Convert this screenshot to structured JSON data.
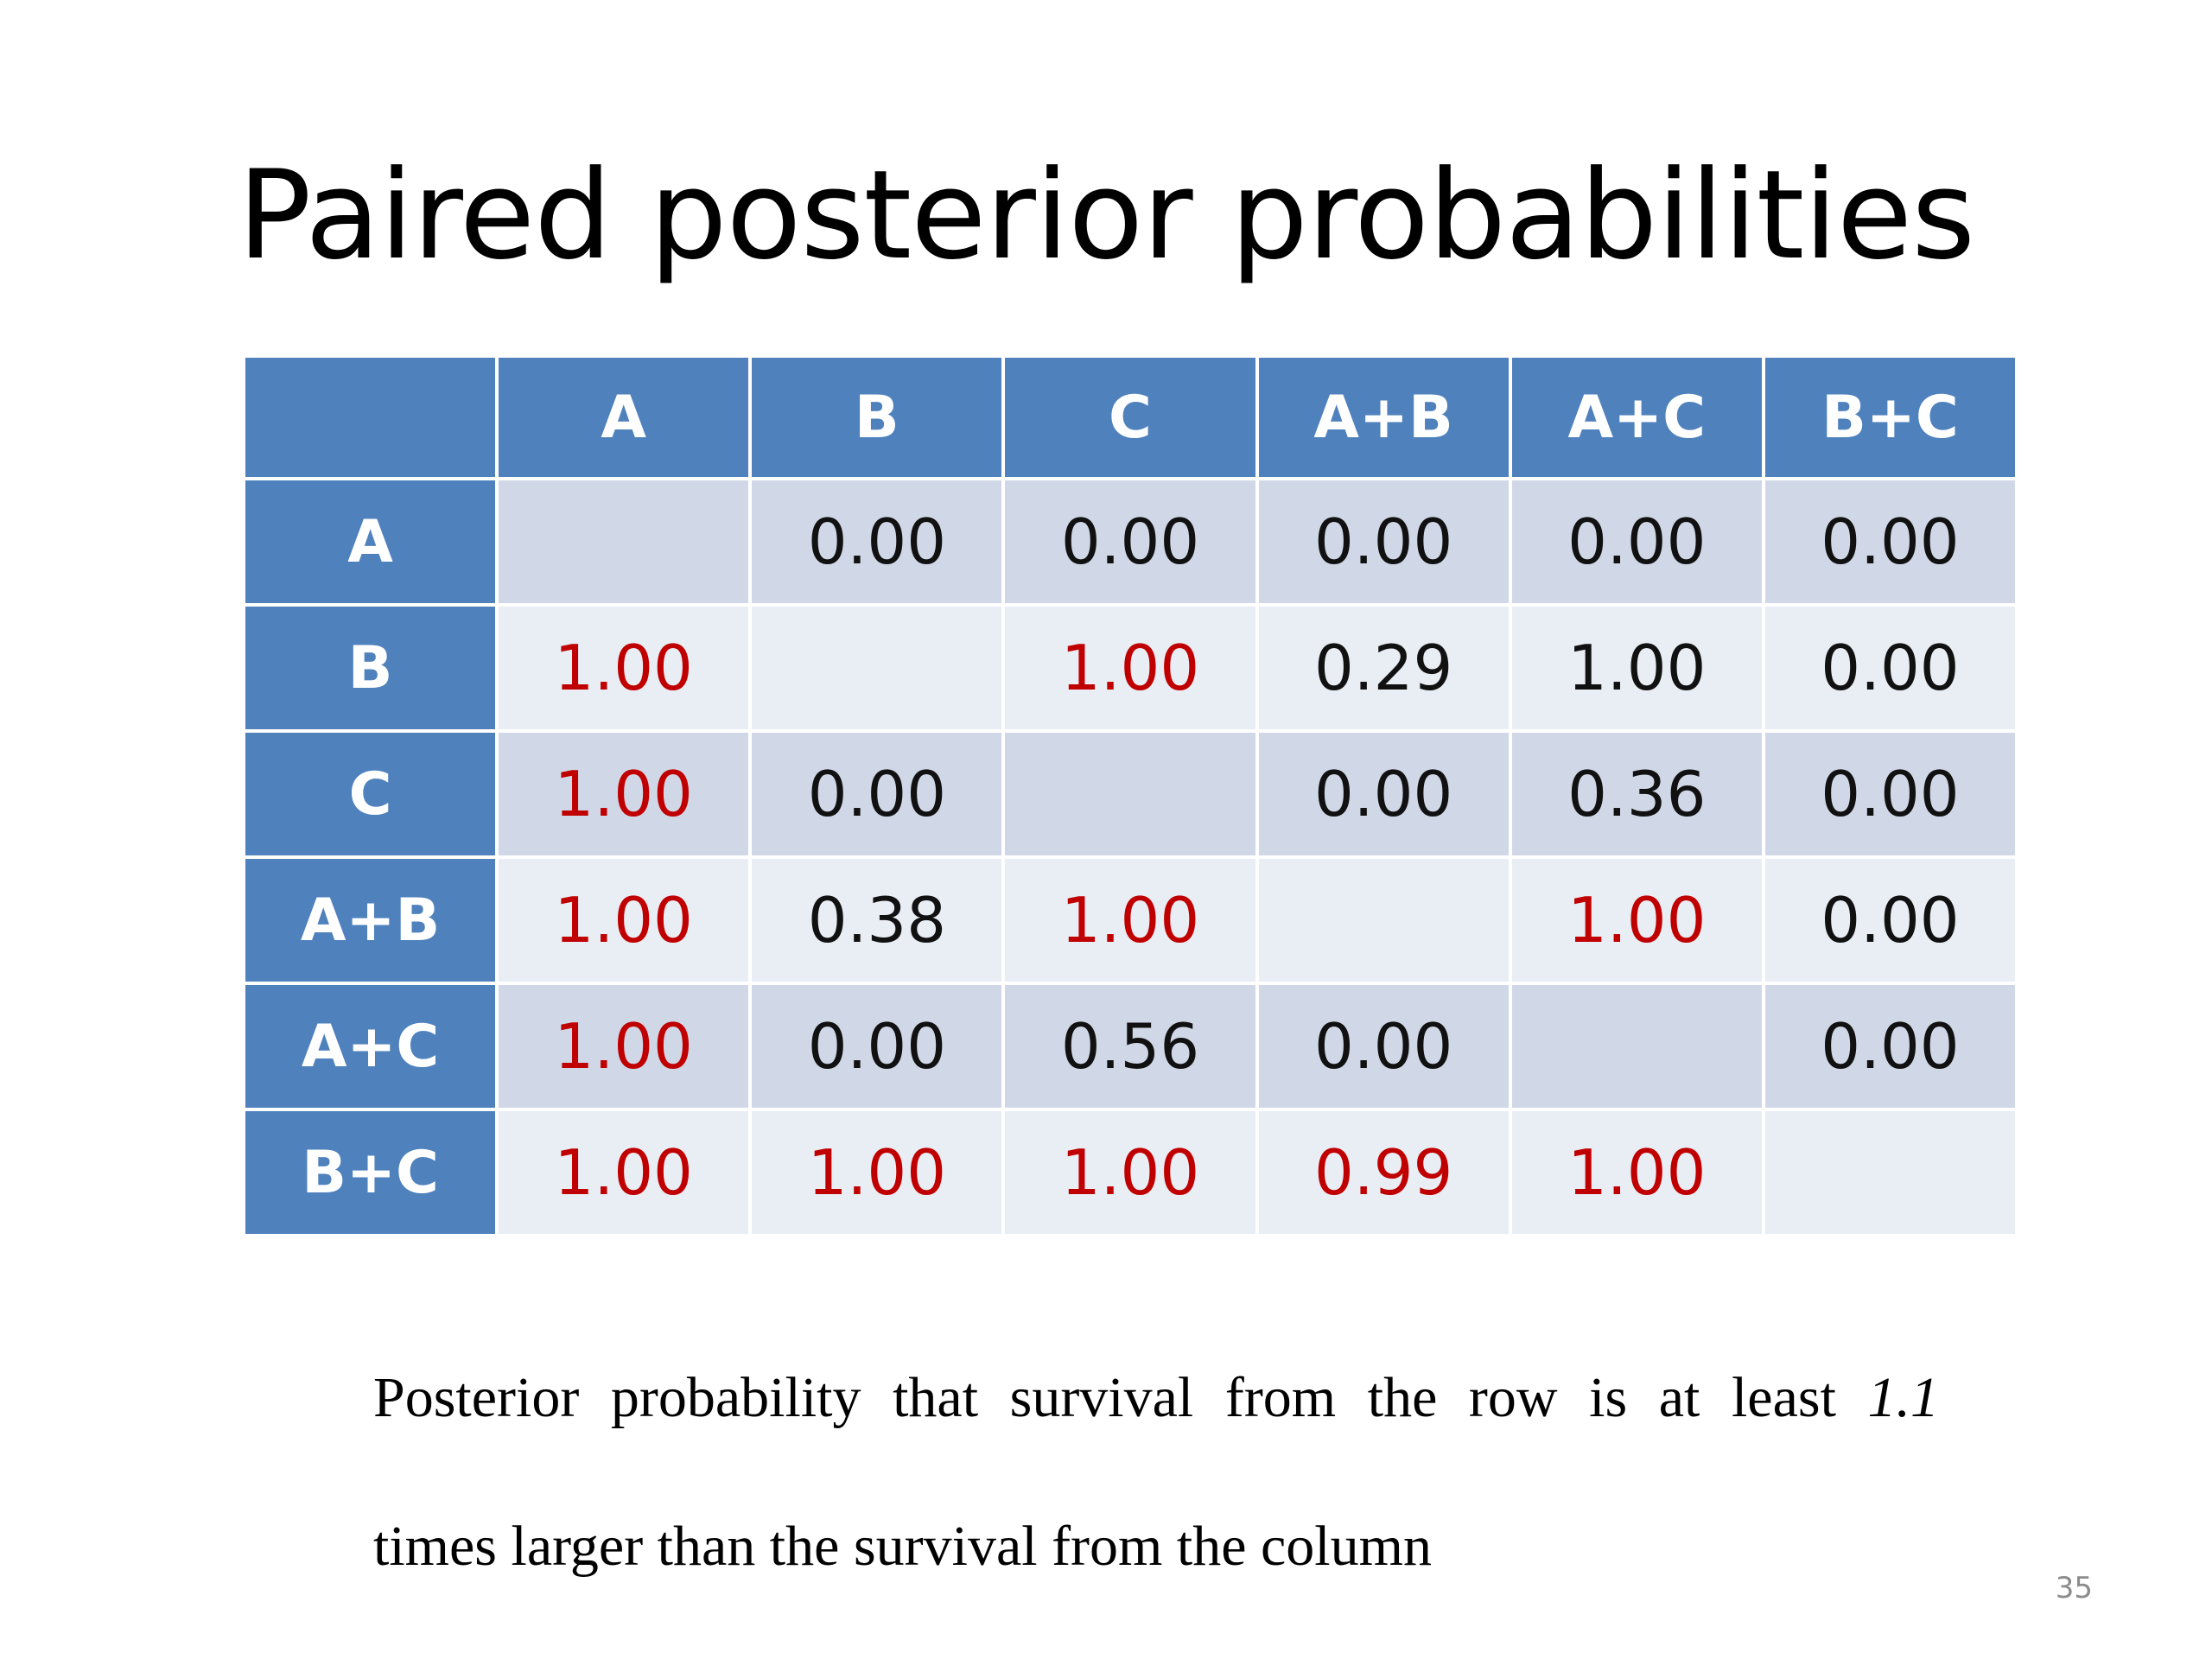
{
  "slide": {
    "title": "Paired posterior probabilities",
    "page_number": "35"
  },
  "table": {
    "corner": "",
    "columns": [
      "A",
      "B",
      "C",
      "A+B",
      "A+C",
      "B+C"
    ],
    "rows": [
      {
        "label": "A",
        "cells": [
          {
            "value": "",
            "highlight": false
          },
          {
            "value": "0.00",
            "highlight": false
          },
          {
            "value": "0.00",
            "highlight": false
          },
          {
            "value": "0.00",
            "highlight": false
          },
          {
            "value": "0.00",
            "highlight": false
          },
          {
            "value": "0.00",
            "highlight": false
          }
        ]
      },
      {
        "label": "B",
        "cells": [
          {
            "value": "1.00",
            "highlight": true
          },
          {
            "value": "",
            "highlight": false
          },
          {
            "value": "1.00",
            "highlight": true
          },
          {
            "value": "0.29",
            "highlight": false
          },
          {
            "value": "1.00",
            "highlight": false
          },
          {
            "value": "0.00",
            "highlight": false
          }
        ]
      },
      {
        "label": "C",
        "cells": [
          {
            "value": "1.00",
            "highlight": true
          },
          {
            "value": "0.00",
            "highlight": false
          },
          {
            "value": "",
            "highlight": false
          },
          {
            "value": "0.00",
            "highlight": false
          },
          {
            "value": "0.36",
            "highlight": false
          },
          {
            "value": "0.00",
            "highlight": false
          }
        ]
      },
      {
        "label": "A+B",
        "cells": [
          {
            "value": "1.00",
            "highlight": true
          },
          {
            "value": "0.38",
            "highlight": false
          },
          {
            "value": "1.00",
            "highlight": true
          },
          {
            "value": "",
            "highlight": false
          },
          {
            "value": "1.00",
            "highlight": true
          },
          {
            "value": "0.00",
            "highlight": false
          }
        ]
      },
      {
        "label": "A+C",
        "cells": [
          {
            "value": "1.00",
            "highlight": true
          },
          {
            "value": "0.00",
            "highlight": false
          },
          {
            "value": "0.56",
            "highlight": false
          },
          {
            "value": "0.00",
            "highlight": false
          },
          {
            "value": "",
            "highlight": false
          },
          {
            "value": "0.00",
            "highlight": false
          }
        ]
      },
      {
        "label": "B+C",
        "cells": [
          {
            "value": "1.00",
            "highlight": true
          },
          {
            "value": "1.00",
            "highlight": true
          },
          {
            "value": "1.00",
            "highlight": true
          },
          {
            "value": "0.99",
            "highlight": true
          },
          {
            "value": "1.00",
            "highlight": true
          },
          {
            "value": "",
            "highlight": false
          }
        ]
      }
    ],
    "colors": {
      "header_bg": "#4f81bd",
      "band_dark": "#d0d8e8",
      "band_light": "#e9edf4",
      "highlight_text": "#c00000"
    }
  },
  "caption": {
    "line1_main": "Posterior probability that survival from the row is at least",
    "line1_emph": "1.1",
    "line2": "times larger than the survival from the column"
  }
}
